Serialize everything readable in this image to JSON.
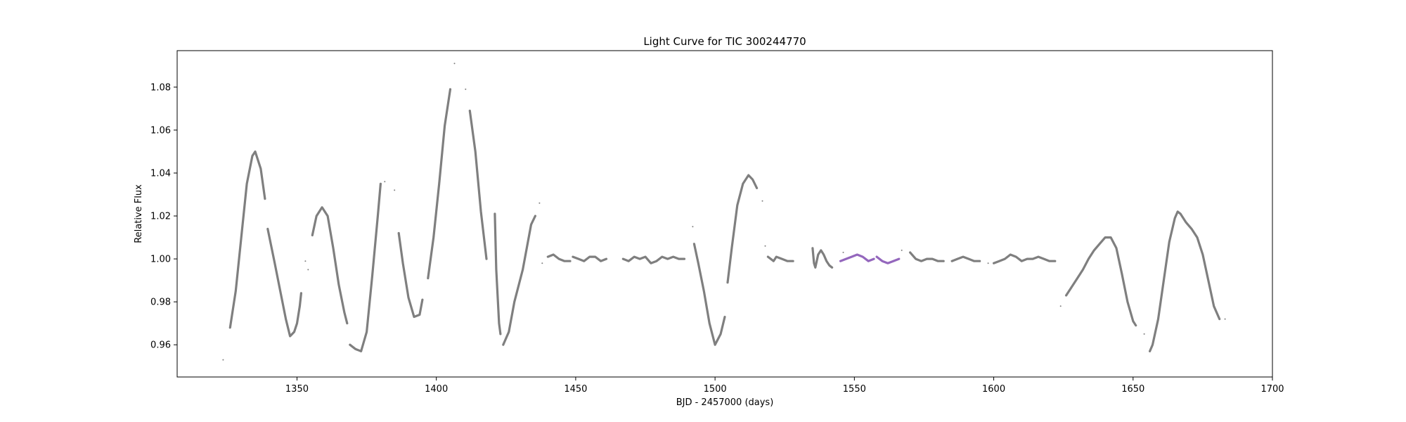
{
  "chart_data": {
    "type": "scatter",
    "title": "Light Curve for TIC 300244770",
    "xlabel": "BJD - 2457000 (days)",
    "ylabel": "Relative Flux",
    "xlim": [
      1307,
      1700
    ],
    "ylim": [
      0.945,
      1.097
    ],
    "xticks": [
      1350,
      1400,
      1450,
      1500,
      1550,
      1600,
      1650,
      1700
    ],
    "yticks": [
      0.96,
      0.98,
      1.0,
      1.02,
      1.04,
      1.06,
      1.08
    ],
    "xtick_labels": [
      "1350",
      "1400",
      "1450",
      "1500",
      "1550",
      "1600",
      "1650",
      "1700"
    ],
    "ytick_labels": [
      "0.96",
      "0.98",
      "1.00",
      "1.02",
      "1.04",
      "1.06",
      "1.08"
    ],
    "grid": false,
    "colors": {
      "main": "#7f7f7f",
      "highlight": "#9467bd"
    },
    "series": [
      {
        "color": "#7f7f7f",
        "segments": [
          [
            [
              1326,
              0.968
            ],
            [
              1328,
              0.985
            ],
            [
              1330,
              1.01
            ],
            [
              1332,
              1.035
            ],
            [
              1334,
              1.048
            ],
            [
              1335,
              1.05
            ],
            [
              1337,
              1.042
            ],
            [
              1338.5,
              1.028
            ]
          ],
          [
            [
              1339.5,
              1.014
            ],
            [
              1342,
              0.998
            ],
            [
              1344,
              0.985
            ],
            [
              1346,
              0.972
            ],
            [
              1347.5,
              0.964
            ],
            [
              1349,
              0.966
            ],
            [
              1350,
              0.97
            ],
            [
              1351,
              0.978
            ],
            [
              1351.5,
              0.984
            ]
          ],
          [
            [
              1355.5,
              1.011
            ],
            [
              1357,
              1.02
            ],
            [
              1359,
              1.024
            ],
            [
              1361,
              1.02
            ],
            [
              1363,
              1.005
            ],
            [
              1365,
              0.988
            ],
            [
              1367,
              0.975
            ],
            [
              1368,
              0.97
            ]
          ],
          [
            [
              1369,
              0.96
            ],
            [
              1371,
              0.958
            ],
            [
              1373,
              0.957
            ],
            [
              1375,
              0.966
            ],
            [
              1377,
              0.992
            ],
            [
              1379,
              1.02
            ],
            [
              1380,
              1.035
            ]
          ],
          [
            [
              1386.5,
              1.012
            ],
            [
              1388,
              0.998
            ],
            [
              1390,
              0.982
            ],
            [
              1392,
              0.973
            ],
            [
              1394,
              0.974
            ],
            [
              1395,
              0.981
            ]
          ],
          [
            [
              1397,
              0.991
            ],
            [
              1399,
              1.01
            ],
            [
              1401,
              1.035
            ],
            [
              1403,
              1.062
            ],
            [
              1405,
              1.079
            ]
          ],
          [
            [
              1412,
              1.069
            ],
            [
              1414,
              1.05
            ],
            [
              1416,
              1.022
            ],
            [
              1418,
              1.0
            ]
          ],
          [
            [
              1421,
              1.021
            ],
            [
              1421.5,
              0.995
            ],
            [
              1422.5,
              0.97
            ],
            [
              1423,
              0.965
            ]
          ],
          [
            [
              1424,
              0.96
            ],
            [
              1426,
              0.966
            ],
            [
              1428,
              0.98
            ],
            [
              1431,
              0.995
            ],
            [
              1434,
              1.016
            ],
            [
              1435.5,
              1.02
            ]
          ],
          [
            [
              1440,
              1.001
            ],
            [
              1442,
              1.002
            ],
            [
              1444,
              1.0
            ],
            [
              1446,
              0.999
            ],
            [
              1448,
              0.999
            ]
          ],
          [
            [
              1449,
              1.001
            ],
            [
              1451,
              1.0
            ],
            [
              1453,
              0.999
            ],
            [
              1455,
              1.001
            ],
            [
              1457,
              1.001
            ],
            [
              1459,
              0.999
            ],
            [
              1461,
              1.0
            ]
          ],
          [
            [
              1467,
              1.0
            ],
            [
              1469,
              0.999
            ],
            [
              1471,
              1.001
            ],
            [
              1473,
              1.0
            ],
            [
              1475,
              1.001
            ],
            [
              1477,
              0.998
            ],
            [
              1479,
              0.999
            ],
            [
              1481,
              1.001
            ],
            [
              1483,
              1.0
            ],
            [
              1485,
              1.001
            ],
            [
              1487,
              1.0
            ],
            [
              1489,
              1.0
            ]
          ],
          [
            [
              1492.5,
              1.007
            ],
            [
              1494,
              0.998
            ],
            [
              1496,
              0.985
            ],
            [
              1498,
              0.97
            ],
            [
              1500,
              0.96
            ],
            [
              1502,
              0.965
            ],
            [
              1503.5,
              0.973
            ]
          ],
          [
            [
              1504.5,
              0.989
            ],
            [
              1506,
              1.005
            ],
            [
              1508,
              1.025
            ],
            [
              1510,
              1.035
            ],
            [
              1512,
              1.039
            ],
            [
              1513.5,
              1.037
            ],
            [
              1515,
              1.033
            ]
          ],
          [
            [
              1519,
              1.001
            ],
            [
              1521,
              0.999
            ],
            [
              1522,
              1.001
            ],
            [
              1524,
              1.0
            ],
            [
              1526,
              0.999
            ],
            [
              1528,
              0.999
            ]
          ],
          [
            [
              1535,
              1.005
            ],
            [
              1535.5,
              0.998
            ],
            [
              1536,
              0.996
            ],
            [
              1537,
              1.002
            ],
            [
              1538,
              1.004
            ],
            [
              1539,
              1.002
            ],
            [
              1540,
              0.999
            ],
            [
              1541,
              0.997
            ],
            [
              1542,
              0.996
            ]
          ],
          [
            [
              1570,
              1.003
            ],
            [
              1572,
              1.0
            ],
            [
              1574,
              0.999
            ],
            [
              1576,
              1.0
            ],
            [
              1578,
              1.0
            ],
            [
              1580,
              0.999
            ],
            [
              1582,
              0.999
            ]
          ],
          [
            [
              1585,
              0.999
            ],
            [
              1587,
              1.0
            ],
            [
              1589,
              1.001
            ],
            [
              1591,
              1.0
            ],
            [
              1593,
              0.999
            ],
            [
              1595,
              0.999
            ]
          ],
          [
            [
              1600,
              0.998
            ],
            [
              1602,
              0.999
            ],
            [
              1604,
              1.0
            ],
            [
              1606,
              1.002
            ],
            [
              1608,
              1.001
            ],
            [
              1610,
              0.999
            ],
            [
              1612,
              1.0
            ],
            [
              1614,
              1.0
            ],
            [
              1616,
              1.001
            ],
            [
              1618,
              1.0
            ],
            [
              1620,
              0.999
            ],
            [
              1622,
              0.999
            ]
          ],
          [
            [
              1626,
              0.983
            ],
            [
              1628,
              0.987
            ],
            [
              1630,
              0.991
            ],
            [
              1632,
              0.995
            ],
            [
              1634,
              1.0
            ],
            [
              1636,
              1.004
            ],
            [
              1638,
              1.007
            ],
            [
              1640,
              1.01
            ],
            [
              1642,
              1.01
            ],
            [
              1644,
              1.005
            ],
            [
              1646,
              0.993
            ],
            [
              1648,
              0.98
            ],
            [
              1650,
              0.971
            ],
            [
              1651,
              0.969
            ]
          ],
          [
            [
              1656,
              0.957
            ],
            [
              1657,
              0.96
            ],
            [
              1659,
              0.972
            ],
            [
              1661,
              0.99
            ],
            [
              1663,
              1.008
            ],
            [
              1665,
              1.019
            ],
            [
              1666,
              1.022
            ],
            [
              1667,
              1.021
            ],
            [
              1669,
              1.017
            ],
            [
              1671,
              1.014
            ],
            [
              1673,
              1.01
            ],
            [
              1675,
              1.002
            ],
            [
              1677,
              0.99
            ],
            [
              1679,
              0.978
            ],
            [
              1681,
              0.972
            ]
          ]
        ],
        "points": [
          [
            1323.5,
            0.953
          ],
          [
            1353,
            0.999
          ],
          [
            1354,
            0.995
          ],
          [
            1381.5,
            1.036
          ],
          [
            1385,
            1.032
          ],
          [
            1406.5,
            1.091
          ],
          [
            1410.5,
            1.079
          ],
          [
            1437,
            1.026
          ],
          [
            1438,
            0.998
          ],
          [
            1492,
            1.015
          ],
          [
            1517,
            1.027
          ],
          [
            1518,
            1.006
          ],
          [
            1546,
            1.003
          ],
          [
            1567,
            1.004
          ],
          [
            1598,
            0.998
          ],
          [
            1624,
            0.978
          ],
          [
            1654,
            0.965
          ],
          [
            1683,
            0.972
          ]
        ]
      },
      {
        "color": "#9467bd",
        "segments": [
          [
            [
              1545,
              0.999
            ],
            [
              1547,
              1.0
            ],
            [
              1549,
              1.001
            ],
            [
              1551,
              1.002
            ],
            [
              1553,
              1.001
            ],
            [
              1555,
              0.999
            ],
            [
              1557,
              1.0
            ]
          ],
          [
            [
              1558,
              1.001
            ],
            [
              1560,
              0.999
            ],
            [
              1562,
              0.998
            ],
            [
              1564,
              0.999
            ],
            [
              1566,
              1.0
            ]
          ]
        ],
        "points": []
      }
    ]
  }
}
